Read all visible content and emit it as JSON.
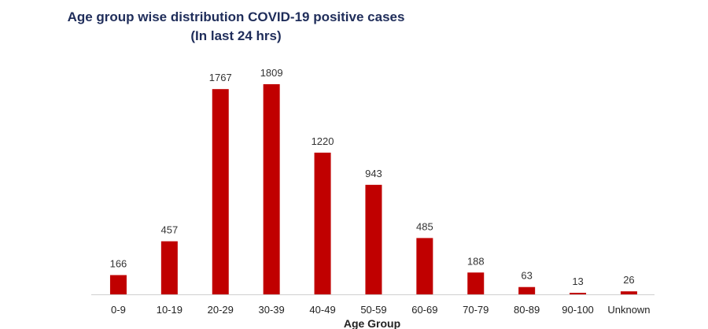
{
  "chart_data": {
    "type": "bar",
    "title": "Age group wise distribution COVID-19 positive cases",
    "subtitle": "(In last 24 hrs)",
    "xlabel": "Age Group",
    "ylabel": "",
    "categories": [
      "0-9",
      "10-19",
      "20-29",
      "30-39",
      "40-49",
      "50-59",
      "60-69",
      "70-79",
      "80-89",
      "90-100",
      "Unknown"
    ],
    "values": [
      166,
      457,
      1767,
      1809,
      1220,
      943,
      485,
      188,
      63,
      13,
      26
    ],
    "ylim": [
      0,
      1809
    ],
    "bar_color": "#c00000",
    "grid": false,
    "legend": "none"
  }
}
